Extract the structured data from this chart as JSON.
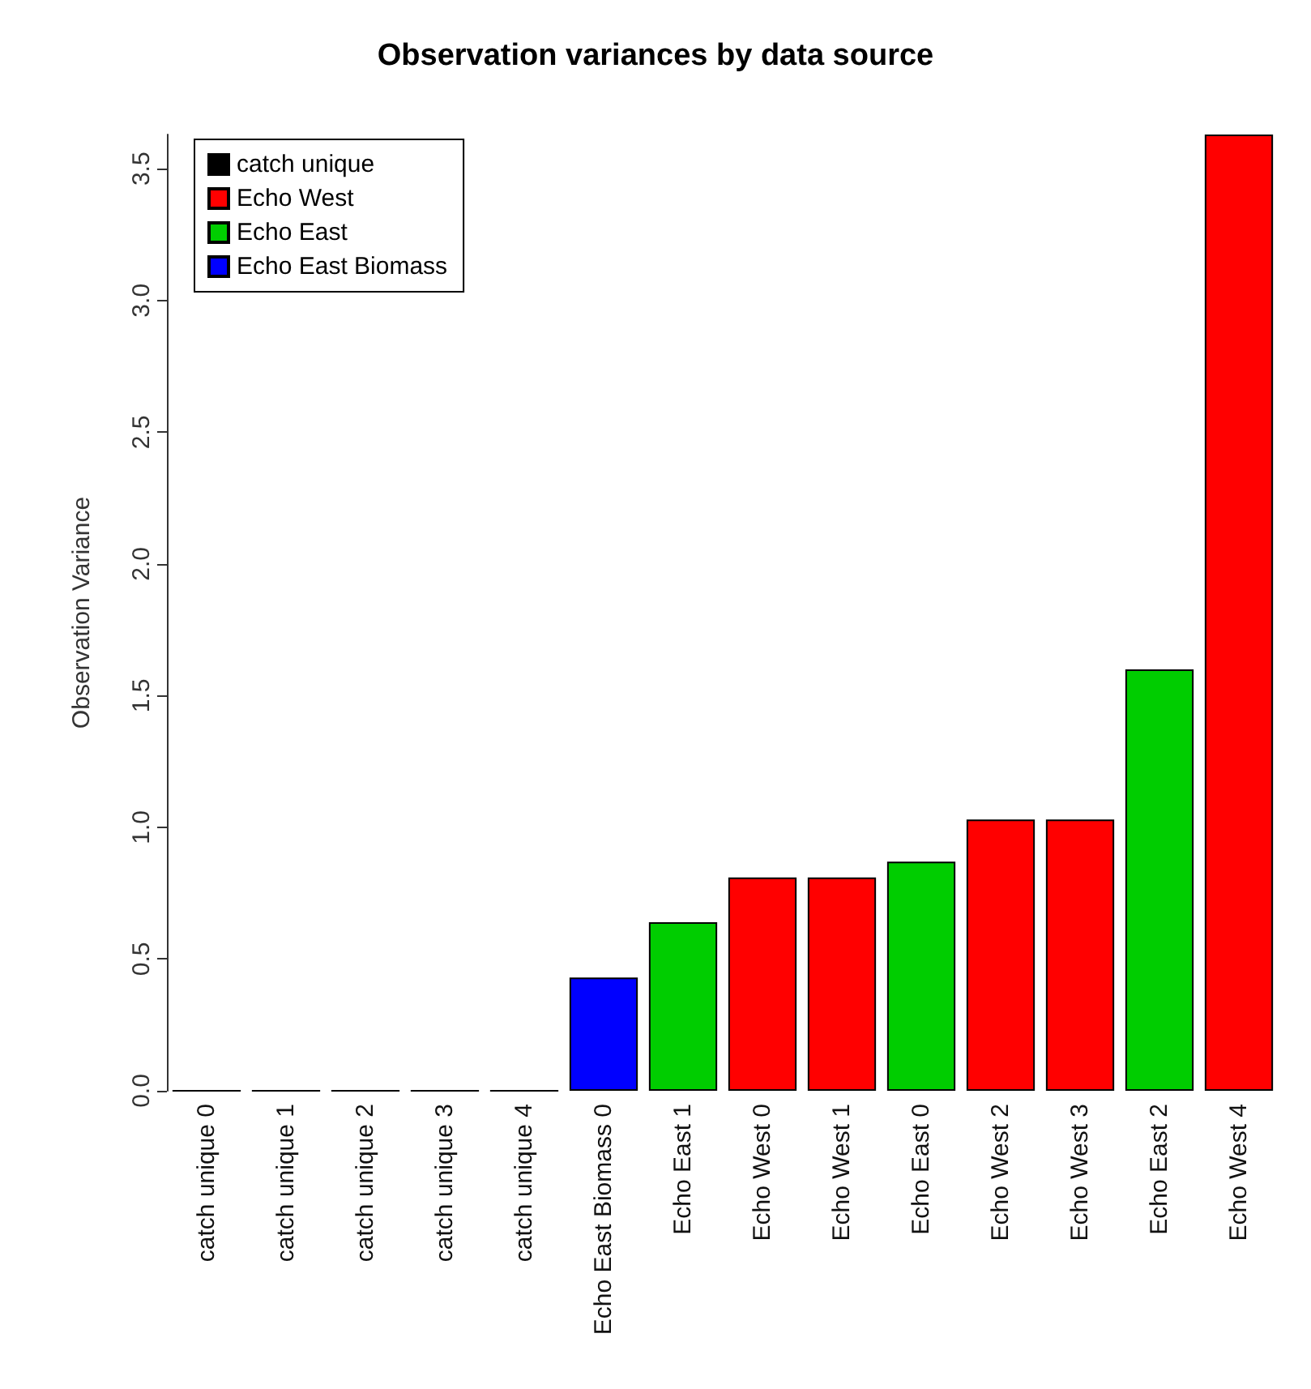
{
  "chart_data": {
    "type": "bar",
    "title": "Observation variances by data source",
    "ylabel": "Observation Variance",
    "categories": [
      "catch unique 0",
      "catch unique 1",
      "catch unique 2",
      "catch unique 3",
      "catch unique 4",
      "Echo East Biomass 0",
      "Echo East 1",
      "Echo West 0",
      "Echo West 1",
      "Echo East 0",
      "Echo West 2",
      "Echo West 3",
      "Echo East 2",
      "Echo West 4"
    ],
    "series": [
      {
        "name": "catch unique",
        "color": "#000000",
        "values": [
          0,
          0,
          0,
          0,
          0,
          null,
          null,
          null,
          null,
          null,
          null,
          null,
          null,
          null
        ]
      },
      {
        "name": "Echo West",
        "color": "#ff0000",
        "values": [
          null,
          null,
          null,
          null,
          null,
          null,
          null,
          0.81,
          0.81,
          null,
          1.03,
          1.03,
          null,
          3.63
        ]
      },
      {
        "name": "Echo East",
        "color": "#00cd00",
        "values": [
          null,
          null,
          null,
          null,
          null,
          null,
          0.64,
          null,
          null,
          0.87,
          null,
          null,
          1.6,
          null
        ]
      },
      {
        "name": "Echo East Biomass",
        "color": "#0000ff",
        "values": [
          null,
          null,
          null,
          null,
          null,
          0.43,
          null,
          null,
          null,
          null,
          null,
          null,
          null,
          null
        ]
      }
    ],
    "ylim": [
      0,
      3.63
    ],
    "yticks": [
      {
        "value": 0,
        "label": "0.0"
      },
      0.5,
      {
        "value": 1,
        "label": "1.0"
      },
      1.5,
      {
        "value": 2,
        "label": "2.0"
      },
      2.5,
      {
        "value": 3,
        "label": "3.0"
      },
      3.5
    ],
    "grid": false,
    "legend": "top left"
  }
}
